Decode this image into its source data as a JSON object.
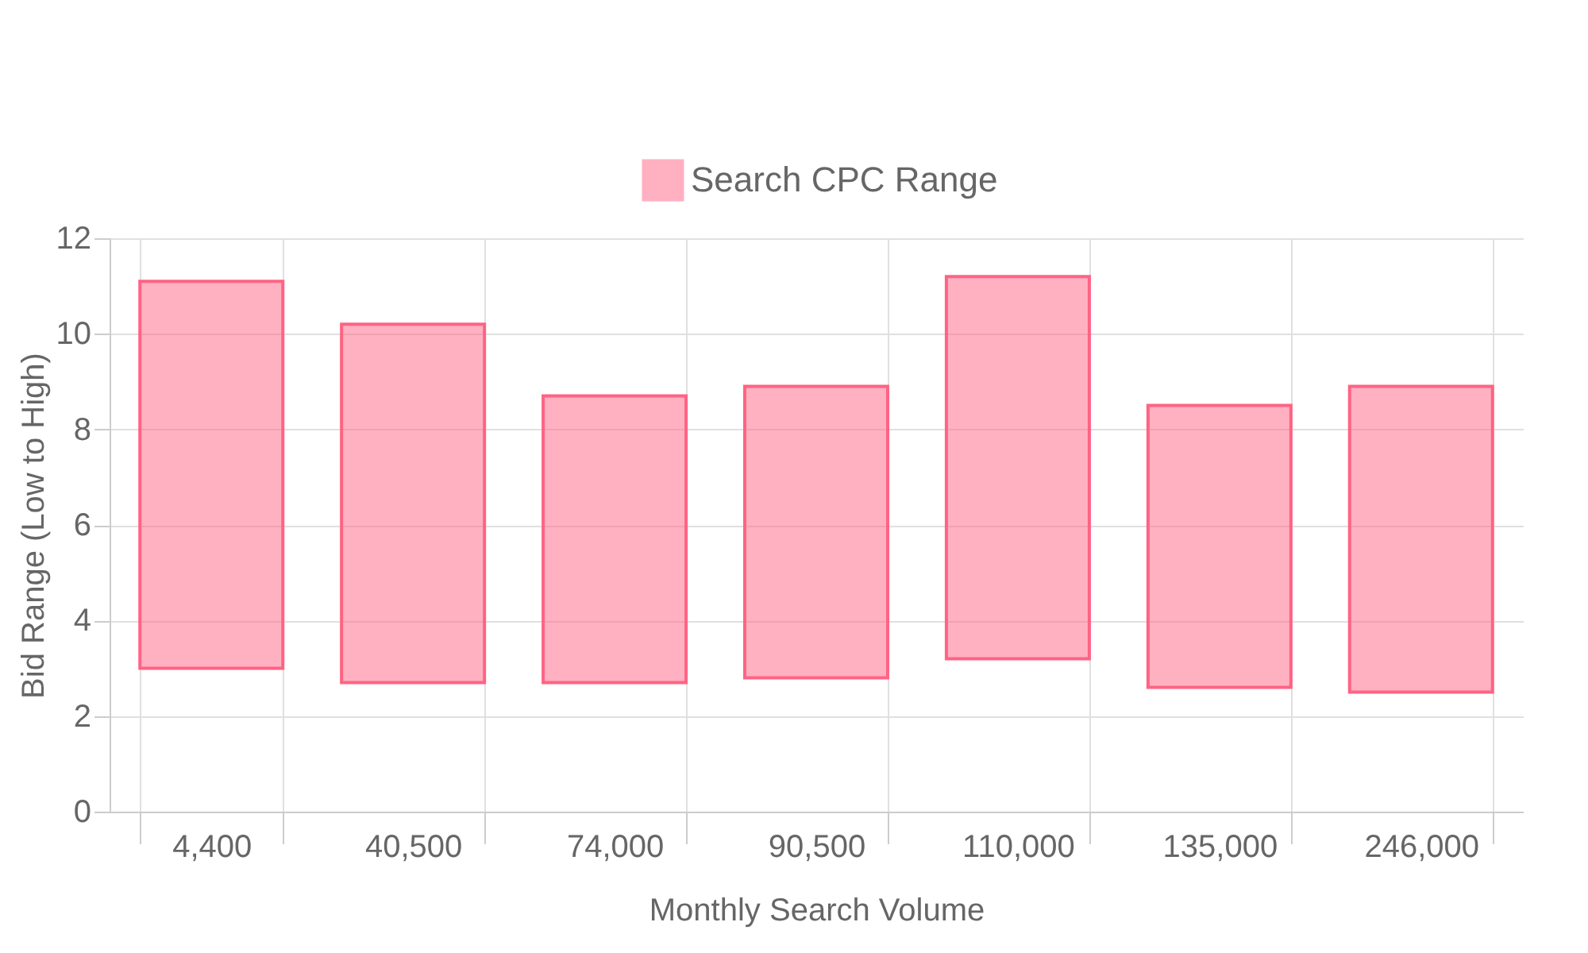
{
  "chart_data": {
    "type": "bar",
    "xlabel": "Monthly Search Volume",
    "ylabel": "Bid Range (Low to High)",
    "categories": [
      "4,400",
      "40,500",
      "74,000",
      "90,500",
      "110,000",
      "135,000",
      "246,000"
    ],
    "series": [
      {
        "name": "Search CPC Range",
        "color": "#ff6384",
        "values": [
          8.1,
          7.5,
          6.0,
          6.1,
          8.0,
          5.9,
          6.4
        ],
        "base": [
          3.0,
          2.7,
          2.7,
          2.8,
          3.2,
          2.6,
          2.5
        ]
      }
    ],
    "ylim": [
      0,
      12
    ],
    "yticks": [
      0,
      2,
      4,
      6,
      8,
      10,
      12
    ],
    "grid": true,
    "legend": "top"
  }
}
